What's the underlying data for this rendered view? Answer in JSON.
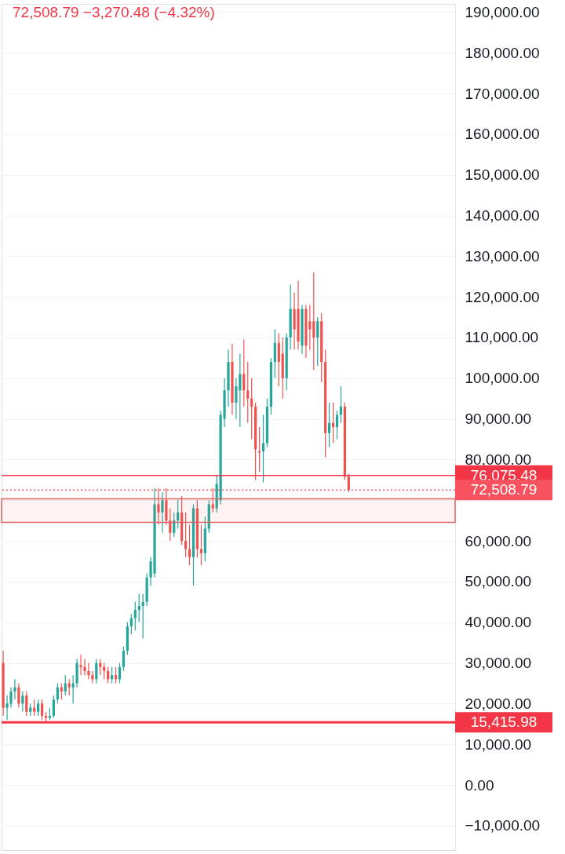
{
  "chart_data": {
    "type": "candlestick",
    "annotations": [
      "72,508.79 −3,270.48 (−4.32%)"
    ],
    "categories": [
      null,
      null,
      null,
      null,
      null,
      null,
      null,
      null,
      null,
      null,
      null,
      null,
      null,
      null,
      null,
      null,
      null,
      null,
      null,
      null,
      null,
      null,
      null,
      null,
      null,
      null,
      null,
      null,
      null,
      null,
      null,
      null,
      null,
      null,
      null,
      null,
      null,
      null,
      null,
      null,
      null,
      null,
      null,
      null,
      null,
      null,
      null,
      null,
      null,
      null,
      null,
      null,
      null,
      null,
      null,
      null,
      null,
      null,
      null,
      null,
      null,
      null,
      null,
      null,
      null,
      null,
      null,
      null,
      null,
      null,
      null,
      null,
      null,
      null,
      null,
      null,
      null,
      null,
      null,
      null,
      null,
      null,
      null,
      null,
      null,
      null,
      null,
      null,
      null,
      null,
      null,
      null,
      null,
      null,
      null,
      null,
      null,
      null,
      null,
      null,
      null,
      null,
      null,
      null,
      null,
      null,
      null,
      null,
      null,
      null,
      null,
      null,
      null,
      null,
      null,
      null,
      null
    ],
    "ohlc": [
      [
        30000,
        33000,
        17000,
        19000
      ],
      [
        19000,
        22000,
        16000,
        20000
      ],
      [
        20000,
        24000,
        19000,
        23000
      ],
      [
        23000,
        26000,
        21000,
        24000
      ],
      [
        24000,
        25000,
        19000,
        20000
      ],
      [
        20000,
        23000,
        18000,
        22000
      ],
      [
        22000,
        23000,
        17000,
        18000
      ],
      [
        18000,
        20000,
        17000,
        19000
      ],
      [
        19000,
        21000,
        17000,
        18000
      ],
      [
        18000,
        21000,
        17000,
        20000
      ],
      [
        20000,
        21000,
        16000,
        17000
      ],
      [
        17000,
        18000,
        15600,
        16500
      ],
      [
        16500,
        19000,
        16000,
        17000
      ],
      [
        17000,
        22000,
        16500,
        21000
      ],
      [
        21000,
        25000,
        20000,
        24000
      ],
      [
        24000,
        25000,
        21000,
        23000
      ],
      [
        23000,
        27000,
        22000,
        25000
      ],
      [
        25000,
        26000,
        22000,
        24000
      ],
      [
        24000,
        27000,
        20000,
        25000
      ],
      [
        25000,
        31000,
        24000,
        30000
      ],
      [
        29000,
        32000,
        27000,
        29500
      ],
      [
        29000,
        31000,
        27000,
        28000
      ],
      [
        28000,
        30000,
        26000,
        27000
      ],
      [
        27000,
        28000,
        25000,
        26000
      ],
      [
        26000,
        31000,
        25000,
        30000
      ],
      [
        30000,
        31000,
        27000,
        29000
      ],
      [
        29000,
        30000,
        26000,
        28000
      ],
      [
        28000,
        29000,
        25000,
        26000
      ],
      [
        26000,
        29000,
        25000,
        27000
      ],
      [
        27000,
        29000,
        25000,
        26000
      ],
      [
        26000,
        30000,
        25000,
        29000
      ],
      [
        29000,
        34000,
        28000,
        33000
      ],
      [
        33000,
        40000,
        32000,
        39000
      ],
      [
        39000,
        42000,
        37000,
        41000
      ],
      [
        41000,
        45000,
        38000,
        43000
      ],
      [
        43000,
        47000,
        40000,
        44000
      ],
      [
        44000,
        47000,
        36000,
        45000
      ],
      [
        45000,
        52000,
        44000,
        51000
      ],
      [
        51000,
        56000,
        49000,
        55000
      ],
      [
        52000,
        73000,
        51000,
        69000
      ],
      [
        69000,
        73000,
        64000,
        67000
      ],
      [
        67000,
        72000,
        62000,
        70000
      ],
      [
        70000,
        73000,
        64000,
        65000
      ],
      [
        65000,
        68000,
        60000,
        62000
      ],
      [
        62000,
        67000,
        61000,
        65000
      ],
      [
        65000,
        70000,
        63000,
        67000
      ],
      [
        67000,
        71000,
        59000,
        60000
      ],
      [
        60000,
        67000,
        56000,
        58000
      ],
      [
        58000,
        64000,
        54000,
        56000
      ],
      [
        56000,
        69000,
        49000,
        68000
      ],
      [
        68000,
        70000,
        56000,
        58000
      ],
      [
        58000,
        64000,
        54000,
        57000
      ],
      [
        57000,
        66000,
        55000,
        63000
      ],
      [
        63000,
        70000,
        62000,
        69000
      ],
      [
        69000,
        73000,
        67000,
        68000
      ],
      [
        68000,
        76000,
        67000,
        74000
      ],
      [
        70000,
        92000,
        69000,
        91000
      ],
      [
        90000,
        100000,
        88000,
        97000
      ],
      [
        97000,
        107000,
        93000,
        104000
      ],
      [
        104000,
        108500,
        91000,
        94000
      ],
      [
        94000,
        100000,
        90000,
        98000
      ],
      [
        97000,
        106000,
        88000,
        101000
      ],
      [
        101000,
        109500,
        93000,
        97000
      ],
      [
        97000,
        104000,
        89000,
        95000
      ],
      [
        95000,
        100000,
        85000,
        93000
      ],
      [
        93000,
        94000,
        75000,
        82500
      ],
      [
        82000,
        88000,
        77000,
        81700
      ],
      [
        82000,
        91000,
        74400,
        84000
      ],
      [
        84000,
        95000,
        83000,
        93000
      ],
      [
        93000,
        105000,
        91000,
        104000
      ],
      [
        104000,
        112000,
        100000,
        108700
      ],
      [
        108700,
        111000,
        98000,
        104000
      ],
      [
        106000,
        110000,
        95000,
        100000
      ],
      [
        100000,
        111000,
        97000,
        110000
      ],
      [
        110000,
        123000,
        107000,
        117000
      ],
      [
        117000,
        121000,
        107000,
        112000
      ],
      [
        117000,
        124000,
        107000,
        109000
      ],
      [
        108000,
        118000,
        106000,
        117000
      ],
      [
        117000,
        118000,
        105000,
        108000
      ],
      [
        114000,
        118000,
        107000,
        112000
      ],
      [
        114000,
        126000,
        102000,
        110000
      ],
      [
        110000,
        115000,
        103000,
        114000
      ],
      [
        114000,
        116000,
        99000,
        104000
      ],
      [
        104000,
        107000,
        80500,
        86500
      ],
      [
        86500,
        94000,
        83000,
        89000
      ],
      [
        89000,
        94000,
        84000,
        88000
      ],
      [
        88000,
        92000,
        85000,
        91000
      ],
      [
        91000,
        98000,
        89000,
        93000
      ],
      [
        93000,
        94000,
        75000,
        75800
      ],
      [
        75800,
        76500,
        72000,
        72508.79
      ],
      null,
      null,
      null,
      null,
      null,
      null,
      null,
      null,
      null,
      null,
      null,
      null,
      null,
      null,
      null,
      null,
      null,
      null,
      null,
      null,
      null,
      null,
      null,
      null,
      null,
      null,
      null
    ],
    "colors": [
      "#ef5350",
      "#26a69a",
      "#26a69a",
      "#26a69a",
      "#ef5350",
      "#26a69a",
      "#ef5350",
      "#26a69a",
      "#ef5350",
      "#26a69a",
      "#ef5350",
      "#ef5350",
      "#26a69a",
      "#26a69a",
      "#26a69a",
      "#ef5350",
      "#26a69a",
      "#ef5350",
      "#26a69a",
      "#26a69a",
      "#ef5350",
      "#ef5350",
      "#ef5350",
      "#ef5350",
      "#26a69a",
      "#ef5350",
      "#ef5350",
      "#ef5350",
      "#26a69a",
      "#ef5350",
      "#26a69a",
      "#26a69a",
      "#26a69a",
      "#26a69a",
      "#26a69a",
      "#26a69a",
      "#26a69a",
      "#26a69a",
      "#26a69a",
      "#26a69a",
      "#ef5350",
      "#26a69a",
      "#ef5350",
      "#ef5350",
      "#26a69a",
      "#26a69a",
      "#ef5350",
      "#ef5350",
      "#ef5350",
      "#26a69a",
      "#ef5350",
      "#ef5350",
      "#26a69a",
      "#26a69a",
      "#ef5350",
      "#26a69a",
      "#26a69a",
      "#26a69a",
      "#26a69a",
      "#ef5350",
      "#26a69a",
      "#26a69a",
      "#ef5350",
      "#ef5350",
      "#ef5350",
      "#ef5350",
      "#ef5350",
      "#26a69a",
      "#26a69a",
      "#26a69a",
      "#26a69a",
      "#ef5350",
      "#ef5350",
      "#26a69a",
      "#26a69a",
      "#ef5350",
      "#ef5350",
      "#26a69a",
      "#ef5350",
      "#ef5350",
      "#ef5350",
      "#26a69a",
      "#ef5350",
      "#ef5350",
      "#26a69a",
      "#ef5350",
      "#26a69a",
      "#26a69a",
      "#ef5350",
      "#ef5350",
      null,
      null,
      null,
      null,
      null,
      null,
      null,
      null,
      null,
      null,
      null,
      null,
      null,
      null,
      null,
      null,
      null,
      null,
      null,
      null,
      null,
      null,
      null,
      null,
      null,
      null,
      null
    ],
    "ylim": [
      -16000,
      192000
    ],
    "yticks": [
      {
        "value": 190000,
        "label": "190,000.00"
      },
      {
        "value": 180000,
        "label": "180,000.00"
      },
      {
        "value": 170000,
        "label": "170,000.00"
      },
      {
        "value": 160000,
        "label": "160,000.00"
      },
      {
        "value": 150000,
        "label": "150,000.00"
      },
      {
        "value": 140000,
        "label": "140,000.00"
      },
      {
        "value": 130000,
        "label": "130,000.00"
      },
      {
        "value": 120000,
        "label": "120,000.00"
      },
      {
        "value": 110000,
        "label": "110,000.00"
      },
      {
        "value": 100000,
        "label": "100,000.00"
      },
      {
        "value": 90000,
        "label": "90,000.00"
      },
      {
        "value": 80000,
        "label": "80,000.00"
      },
      {
        "value": 70000,
        "label": null
      },
      {
        "value": 60000,
        "label": "60,000.00"
      },
      {
        "value": 50000,
        "label": "50,000.00"
      },
      {
        "value": 40000,
        "label": "40,000.00"
      },
      {
        "value": 30000,
        "label": "30,000.00"
      },
      {
        "value": 20000,
        "label": "20,000.00"
      },
      {
        "value": 10000,
        "label": "10,000.00"
      },
      {
        "value": 0,
        "label": "0.00"
      },
      {
        "value": -10000,
        "label": "−10,000.00"
      }
    ],
    "ref_lines": [
      {
        "axis": "y",
        "value": 76075.48,
        "label": "76,075.48",
        "color": "#f23645",
        "line_style": "solid"
      },
      {
        "axis": "y",
        "value": 72508.79,
        "label": "72,508.79",
        "color": "#f7525f",
        "line_style": "dotted"
      },
      {
        "axis": "y",
        "value": 15415.98,
        "label": "15,415.98",
        "color": "#f23645",
        "line_style": "solid"
      }
    ],
    "bands": [
      {
        "axis": "y",
        "from": 64570,
        "to": 70350,
        "color": "#e06666"
      }
    ],
    "grid": "y",
    "tick_labels": "y"
  }
}
